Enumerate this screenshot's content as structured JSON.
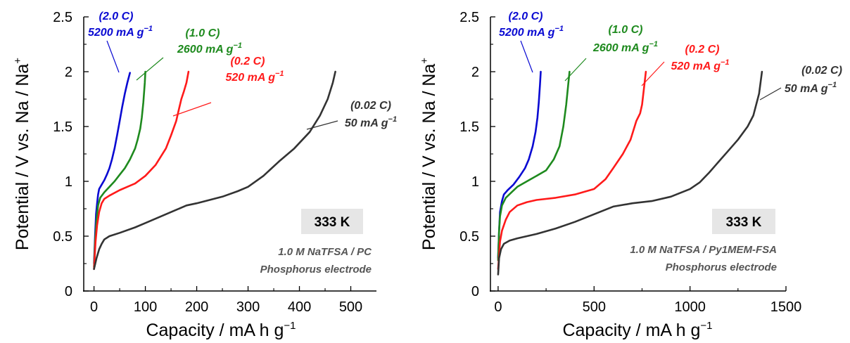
{
  "chart_data": [
    {
      "type": "line",
      "xlabel": "Capacity / mA h g",
      "xlabel_sup": "−1",
      "ylabel": "Potential / V vs. Na / Na",
      "ylabel_sup": "+",
      "xlim": [
        -20,
        550
      ],
      "ylim": [
        0,
        2.5
      ],
      "xticks": [
        0,
        100,
        200,
        300,
        400,
        500
      ],
      "yticks": [
        0,
        0.5,
        1,
        1.5,
        2,
        2.5
      ],
      "xtick_labels": [
        "0",
        "100",
        "200",
        "300",
        "400",
        "500"
      ],
      "ytick_labels": [
        "0",
        "0.5",
        "1",
        "1.5",
        "2",
        "2.5"
      ],
      "temperature_label": "333 K",
      "notes": [
        "1.0 M NaTFSA / PC",
        "Phosphorus electrode"
      ],
      "series": [
        {
          "rate": "(2.0 C)",
          "density": "5200 mA g",
          "density_sup": "−1",
          "color": "#0a0ad2",
          "x": [
            0,
            2,
            4,
            6,
            8,
            10,
            15,
            20,
            25,
            30,
            35,
            40,
            45,
            50,
            55,
            60,
            65,
            70
          ],
          "y": [
            0.25,
            0.5,
            0.7,
            0.8,
            0.88,
            0.93,
            0.97,
            1.01,
            1.06,
            1.12,
            1.2,
            1.3,
            1.42,
            1.55,
            1.68,
            1.8,
            1.9,
            1.99
          ]
        },
        {
          "rate": "(1.0 C)",
          "density": "2600 mA g",
          "density_sup": "−1",
          "color": "#1e8a1e",
          "x": [
            0,
            2,
            5,
            8,
            12,
            20,
            30,
            40,
            50,
            60,
            70,
            80,
            85,
            90,
            93,
            96,
            99,
            100
          ],
          "y": [
            0.22,
            0.45,
            0.65,
            0.78,
            0.85,
            0.9,
            0.95,
            1.0,
            1.06,
            1.12,
            1.2,
            1.3,
            1.38,
            1.48,
            1.58,
            1.72,
            1.9,
            2.0
          ]
        },
        {
          "rate": "(0.2 C)",
          "density": "520 mA g",
          "density_sup": "−1",
          "color": "#ff1a1a",
          "x": [
            0,
            3,
            6,
            10,
            15,
            20,
            30,
            50,
            70,
            80,
            100,
            120,
            140,
            150,
            160,
            165,
            170,
            175,
            180,
            184
          ],
          "y": [
            0.2,
            0.45,
            0.6,
            0.72,
            0.8,
            0.84,
            0.87,
            0.92,
            0.96,
            0.98,
            1.05,
            1.15,
            1.3,
            1.42,
            1.55,
            1.65,
            1.75,
            1.82,
            1.9,
            2.0
          ]
        },
        {
          "rate": "(0.02 C)",
          "density": "50 mA g",
          "density_sup": "−1",
          "color": "#333333",
          "x": [
            0,
            5,
            10,
            15,
            20,
            30,
            50,
            80,
            100,
            130,
            160,
            180,
            200,
            250,
            280,
            300,
            330,
            360,
            390,
            420,
            440,
            455,
            465,
            470
          ],
          "y": [
            0.2,
            0.3,
            0.38,
            0.43,
            0.47,
            0.5,
            0.53,
            0.58,
            0.62,
            0.68,
            0.74,
            0.78,
            0.8,
            0.86,
            0.91,
            0.95,
            1.05,
            1.18,
            1.3,
            1.45,
            1.6,
            1.75,
            1.9,
            2.0
          ]
        }
      ]
    },
    {
      "type": "line",
      "xlabel": "Capacity / mA h g",
      "xlabel_sup": "−1",
      "ylabel": "Potential / V vs. Na / Na",
      "ylabel_sup": "+",
      "xlim": [
        -40,
        1500
      ],
      "ylim": [
        0,
        2.5
      ],
      "xticks": [
        0,
        500,
        1000,
        1500
      ],
      "yticks": [
        0,
        0.5,
        1,
        1.5,
        2,
        2.5
      ],
      "xtick_labels": [
        "0",
        "500",
        "1000",
        "1500"
      ],
      "ytick_labels": [
        "0",
        "0.5",
        "1",
        "1.5",
        "2",
        "2.5"
      ],
      "temperature_label": "333 K",
      "notes": [
        "1.0 M NaTFSA / Py1MEM-FSA",
        "Phosphorus electrode"
      ],
      "series": [
        {
          "rate": "(2.0 C)",
          "density": "5200 mA g",
          "density_sup": "−1",
          "color": "#0a0ad2",
          "x": [
            0,
            5,
            10,
            20,
            30,
            50,
            80,
            110,
            140,
            160,
            180,
            195,
            205,
            212,
            218,
            222
          ],
          "y": [
            0.3,
            0.55,
            0.72,
            0.82,
            0.88,
            0.92,
            0.97,
            1.04,
            1.12,
            1.2,
            1.32,
            1.45,
            1.58,
            1.72,
            1.88,
            2.0
          ]
        },
        {
          "rate": "(1.0 C)",
          "density": "2600 mA g",
          "density_sup": "−1",
          "color": "#1e8a1e",
          "x": [
            0,
            5,
            10,
            20,
            40,
            70,
            100,
            150,
            200,
            250,
            290,
            320,
            340,
            355,
            365,
            372
          ],
          "y": [
            0.28,
            0.55,
            0.68,
            0.78,
            0.85,
            0.9,
            0.95,
            1.0,
            1.05,
            1.1,
            1.2,
            1.32,
            1.5,
            1.7,
            1.88,
            2.0
          ]
        },
        {
          "rate": "(0.2 C)",
          "density": "520 mA g",
          "density_sup": "−1",
          "color": "#ff1a1a",
          "x": [
            0,
            10,
            20,
            40,
            60,
            100,
            150,
            200,
            300,
            400,
            500,
            560,
            600,
            650,
            690,
            720,
            740,
            750,
            760,
            770
          ],
          "y": [
            0.2,
            0.45,
            0.55,
            0.65,
            0.72,
            0.78,
            0.81,
            0.83,
            0.85,
            0.88,
            0.93,
            1.02,
            1.12,
            1.25,
            1.38,
            1.55,
            1.62,
            1.7,
            1.85,
            2.0
          ]
        },
        {
          "rate": "(0.02 C)",
          "density": "50 mA g",
          "density_sup": "−1",
          "color": "#333333",
          "x": [
            0,
            5,
            15,
            30,
            60,
            100,
            200,
            300,
            400,
            500,
            600,
            700,
            800,
            900,
            1000,
            1050,
            1100,
            1150,
            1200,
            1250,
            1300,
            1330,
            1360,
            1375
          ],
          "y": [
            0.15,
            0.3,
            0.38,
            0.43,
            0.46,
            0.48,
            0.52,
            0.57,
            0.63,
            0.7,
            0.77,
            0.8,
            0.82,
            0.86,
            0.93,
            0.99,
            1.08,
            1.18,
            1.28,
            1.38,
            1.5,
            1.6,
            1.8,
            2.0
          ]
        }
      ]
    }
  ]
}
